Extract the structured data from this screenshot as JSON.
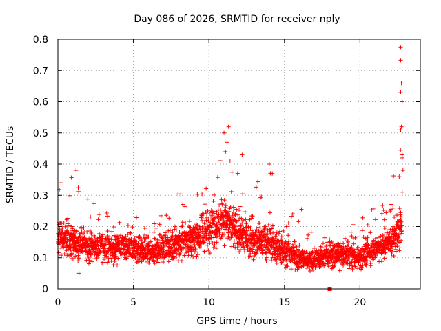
{
  "chart_data": {
    "type": "scatter",
    "title": "Day 086 of 2026, SRMTID for receiver nply",
    "xlabel": "GPS time / hours",
    "ylabel": "SRMTID / TECUs",
    "xlim": [
      0,
      24
    ],
    "ylim": [
      0,
      0.8
    ],
    "x_ticks": [
      0,
      5,
      10,
      15,
      20
    ],
    "x_tick_labels": [
      "0",
      "5",
      "10",
      "15",
      "20"
    ],
    "y_ticks": [
      0,
      0.1,
      0.2,
      0.3,
      0.4,
      0.5,
      0.6,
      0.7,
      0.8
    ],
    "y_tick_labels": [
      "0",
      "0.1",
      "0.2",
      "0.3",
      "0.4",
      "0.5",
      "0.6",
      "0.7",
      "0.8"
    ],
    "grid": true,
    "marker_color": "#ff0000",
    "marker": "plus",
    "series": [
      {
        "name": "SRMTID",
        "envelope": [
          {
            "x": 0.0,
            "base": 0.17,
            "spread": 0.07,
            "max": 0.35
          },
          {
            "x": 1.0,
            "base": 0.15,
            "spread": 0.07,
            "max": 0.37
          },
          {
            "x": 2.0,
            "base": 0.14,
            "spread": 0.06,
            "max": 0.3
          },
          {
            "x": 3.0,
            "base": 0.13,
            "spread": 0.06,
            "max": 0.26
          },
          {
            "x": 4.0,
            "base": 0.13,
            "spread": 0.06,
            "max": 0.22
          },
          {
            "x": 5.0,
            "base": 0.13,
            "spread": 0.06,
            "max": 0.24
          },
          {
            "x": 6.0,
            "base": 0.12,
            "spread": 0.05,
            "max": 0.27
          },
          {
            "x": 7.0,
            "base": 0.13,
            "spread": 0.06,
            "max": 0.24
          },
          {
            "x": 8.0,
            "base": 0.15,
            "spread": 0.07,
            "max": 0.31
          },
          {
            "x": 9.0,
            "base": 0.16,
            "spread": 0.07,
            "max": 0.33
          },
          {
            "x": 10.0,
            "base": 0.19,
            "spread": 0.08,
            "max": 0.34
          },
          {
            "x": 11.0,
            "base": 0.22,
            "spread": 0.09,
            "max": 0.52
          },
          {
            "x": 12.0,
            "base": 0.18,
            "spread": 0.08,
            "max": 0.36
          },
          {
            "x": 13.0,
            "base": 0.15,
            "spread": 0.07,
            "max": 0.33
          },
          {
            "x": 14.0,
            "base": 0.15,
            "spread": 0.07,
            "max": 0.4
          },
          {
            "x": 15.0,
            "base": 0.12,
            "spread": 0.06,
            "max": 0.27
          },
          {
            "x": 16.0,
            "base": 0.1,
            "spread": 0.05,
            "max": 0.28
          },
          {
            "x": 17.0,
            "base": 0.09,
            "spread": 0.04,
            "max": 0.16
          },
          {
            "x": 18.0,
            "base": 0.11,
            "spread": 0.05,
            "max": 0.18
          },
          {
            "x": 19.0,
            "base": 0.11,
            "spread": 0.05,
            "max": 0.17
          },
          {
            "x": 20.0,
            "base": 0.1,
            "spread": 0.05,
            "max": 0.25
          },
          {
            "x": 21.0,
            "base": 0.13,
            "spread": 0.05,
            "max": 0.26
          },
          {
            "x": 22.0,
            "base": 0.15,
            "spread": 0.06,
            "max": 0.29
          },
          {
            "x": 22.8,
            "base": 0.2,
            "spread": 0.1,
            "max": 0.78
          }
        ],
        "outliers": [
          {
            "x": 22.7,
            "y": 0.775
          },
          {
            "x": 22.7,
            "y": 0.733
          },
          {
            "x": 22.75,
            "y": 0.66
          },
          {
            "x": 22.7,
            "y": 0.63
          },
          {
            "x": 22.8,
            "y": 0.6
          },
          {
            "x": 22.75,
            "y": 0.52
          },
          {
            "x": 22.7,
            "y": 0.51
          },
          {
            "x": 22.8,
            "y": 0.43
          },
          {
            "x": 22.8,
            "y": 0.42
          },
          {
            "x": 22.85,
            "y": 0.38
          },
          {
            "x": 22.6,
            "y": 0.36
          },
          {
            "x": 22.8,
            "y": 0.31
          },
          {
            "x": 11.3,
            "y": 0.52
          },
          {
            "x": 11.0,
            "y": 0.5
          },
          {
            "x": 11.2,
            "y": 0.47
          },
          {
            "x": 11.1,
            "y": 0.44
          },
          {
            "x": 11.4,
            "y": 0.41
          },
          {
            "x": 12.2,
            "y": 0.43
          },
          {
            "x": 11.9,
            "y": 0.37
          },
          {
            "x": 14.0,
            "y": 0.4
          },
          {
            "x": 14.2,
            "y": 0.37
          },
          {
            "x": 1.2,
            "y": 0.38
          },
          {
            "x": 1.4,
            "y": 0.05
          },
          {
            "x": 0.2,
            "y": 0.34
          }
        ],
        "markers": [
          {
            "x": 18.0,
            "y": 0.0,
            "shape": "square"
          }
        ]
      }
    ]
  }
}
